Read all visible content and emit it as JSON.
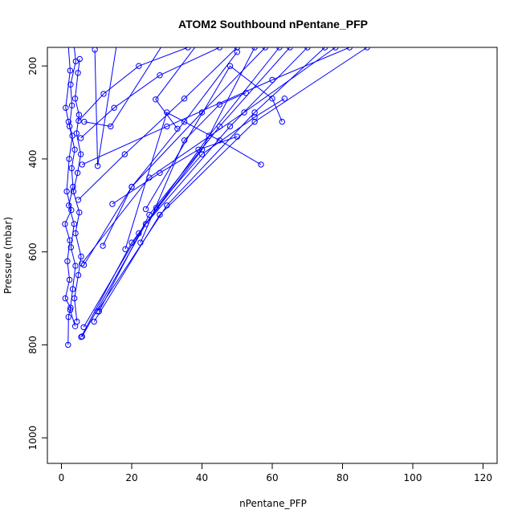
{
  "chart_data": {
    "type": "line",
    "title": "ATOM2 Southbound nPentane_PFP",
    "xlabel": "nPentane_PFP",
    "ylabel": "Pressure (mbar)",
    "xlim": [
      -4,
      124
    ],
    "ylim": [
      1055,
      160
    ],
    "y_reversed": true,
    "xticks": [
      0,
      20,
      40,
      60,
      80,
      100,
      120
    ],
    "yticks": [
      200,
      400,
      600,
      800,
      1000
    ],
    "grid": false,
    "marker": "open-circle",
    "series_color": "#0000ff",
    "series": [
      {
        "x": [
          1.8,
          2.5,
          1.2,
          2.0,
          3.1,
          2.2,
          1.5,
          2.8,
          1.0,
          2.4,
          1.7,
          2.3,
          1.1,
          2.6,
          2.0,
          1.9
        ],
        "y": [
          140,
          210,
          290,
          320,
          350,
          400,
          470,
          510,
          540,
          575,
          620,
          660,
          700,
          720,
          740,
          800
        ]
      },
      {
        "x": [
          3.5,
          4.1,
          2.6,
          3.0,
          2.3,
          3.8,
          2.9,
          3.3,
          2.1,
          3.6,
          2.7,
          4.0,
          3.2,
          2.5,
          3.9
        ],
        "y": [
          150,
          190,
          240,
          285,
          330,
          380,
          420,
          460,
          500,
          540,
          590,
          630,
          680,
          725,
          760
        ]
      },
      {
        "x": [
          5.2,
          4.7,
          3.9,
          5.0,
          4.3,
          5.5,
          4.6,
          3.4,
          5.1,
          4.0,
          5.6,
          4.8,
          3.7,
          4.4
        ],
        "y": [
          185,
          215,
          270,
          305,
          345,
          390,
          430,
          470,
          515,
          560,
          610,
          650,
          700,
          750
        ]
      },
      {
        "x": [
          9.5,
          10.3,
          16,
          22
        ],
        "y": [
          165,
          415,
          140,
          100
        ]
      },
      {
        "x": [
          6.5,
          14.0,
          30
        ],
        "y": [
          320,
          330,
          140
        ]
      },
      {
        "x": [
          63.5,
          55,
          40,
          27
        ],
        "y": [
          270,
          310,
          390,
          505
        ]
      },
      {
        "x": [
          52.5,
          45,
          35,
          22.5
        ],
        "y": [
          258,
          283,
          360,
          580
        ]
      },
      {
        "x": [
          33,
          26.8,
          40
        ],
        "y": [
          335,
          272,
          140
        ]
      },
      {
        "x": [
          50,
          39,
          28,
          14.5
        ],
        "y": [
          352,
          380,
          430,
          497
        ]
      },
      {
        "x": [
          62.8,
          60,
          48,
          24
        ],
        "y": [
          320,
          270,
          200,
          508
        ]
      },
      {
        "x": [
          56.8,
          45,
          30,
          18.2
        ],
        "y": [
          412,
          360,
          300,
          594
        ]
      },
      {
        "x": [
          11.8,
          20,
          35,
          50
        ],
        "y": [
          587,
          460,
          320,
          170
        ]
      },
      {
        "x": [
          6.4,
          20,
          40,
          58
        ],
        "y": [
          628,
          460,
          300,
          160
        ]
      },
      {
        "x": [
          10.2,
          30,
          55,
          75
        ],
        "y": [
          728,
          500,
          300,
          160
        ]
      },
      {
        "x": [
          9.3,
          28,
          55,
          87
        ],
        "y": [
          750,
          520,
          320,
          160
        ]
      },
      {
        "x": [
          5.9,
          24,
          48,
          70
        ],
        "y": [
          782,
          540,
          330,
          160
        ]
      },
      {
        "x": [
          6.3,
          22,
          42,
          62
        ],
        "y": [
          762,
          560,
          350,
          160
        ]
      },
      {
        "x": [
          5.6,
          20,
          40,
          55
        ],
        "y": [
          783,
          580,
          380,
          160
        ]
      },
      {
        "x": [
          5.8,
          25,
          52,
          78
        ],
        "y": [
          625,
          440,
          300,
          160
        ]
      },
      {
        "x": [
          5.9,
          30,
          60,
          82
        ],
        "y": [
          412,
          330,
          230,
          160
        ]
      },
      {
        "x": [
          4.8,
          18,
          35,
          50
        ],
        "y": [
          488,
          390,
          270,
          160
        ]
      },
      {
        "x": [
          10.7,
          25,
          45,
          65
        ],
        "y": [
          728,
          520,
          330,
          160
        ]
      },
      {
        "x": [
          5.5,
          15,
          28,
          45
        ],
        "y": [
          355,
          290,
          220,
          160
        ]
      },
      {
        "x": [
          4.9,
          12,
          22,
          36
        ],
        "y": [
          318,
          260,
          200,
          160
        ]
      }
    ]
  }
}
